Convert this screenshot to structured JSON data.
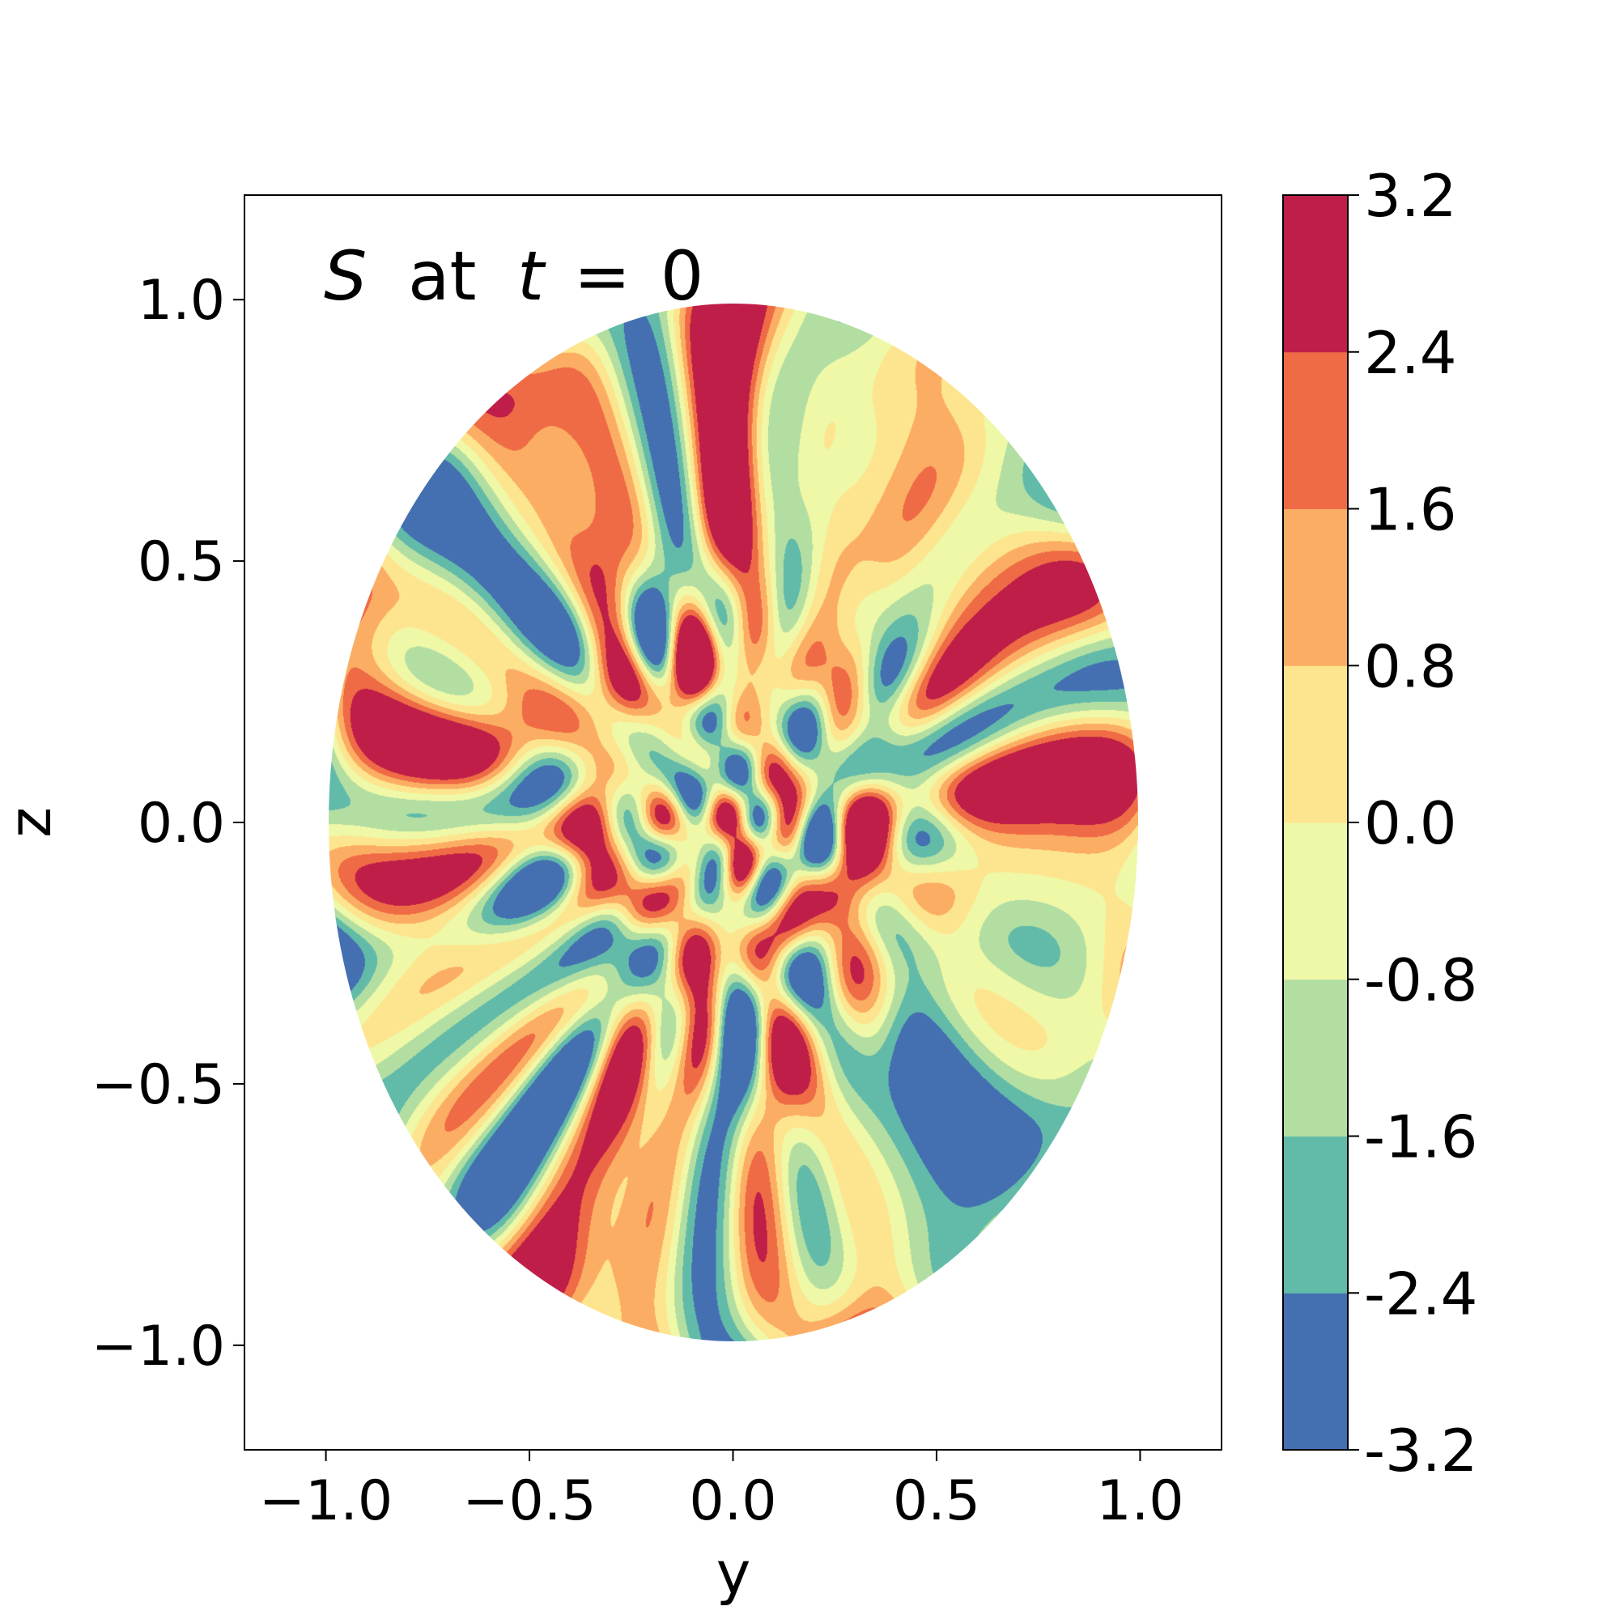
{
  "chart_data": {
    "type": "heatmap",
    "title": "",
    "annotation": {
      "symbol": "S",
      "text": "at",
      "var": "t",
      "eq": "=",
      "val": "0"
    },
    "xlabel": "y",
    "ylabel": "z",
    "xlim": [
      -1.2,
      1.2
    ],
    "ylim": [
      -1.2,
      1.2
    ],
    "xticks": [
      -1.0,
      -0.5,
      0.0,
      0.5,
      1.0
    ],
    "yticks": [
      -1.0,
      -0.5,
      0.0,
      0.5,
      1.0
    ],
    "xtick_labels": [
      "−1.0",
      "−0.5",
      "0.0",
      "0.5",
      "1.0"
    ],
    "ytick_labels": [
      "−1.0",
      "−0.5",
      "0.0",
      "0.5",
      "1.0"
    ],
    "domain": "unit disk (y^2 + z^2 <= 1)",
    "grid": false,
    "colorbar": {
      "levels": [
        -3.2,
        -2.4,
        -1.6,
        -0.8,
        0.0,
        0.8,
        1.6,
        2.4,
        3.2
      ],
      "labels": [
        "-3.2",
        "-2.4",
        "-1.6",
        "-0.8",
        "0.0",
        "0.8",
        "1.6",
        "2.4",
        "3.2"
      ],
      "colors": [
        "#4470b1",
        "#62bba9",
        "#b3dea2",
        "#eef8a7",
        "#fde58f",
        "#fbae63",
        "#ef6b45",
        "#bf1e48"
      ]
    }
  }
}
